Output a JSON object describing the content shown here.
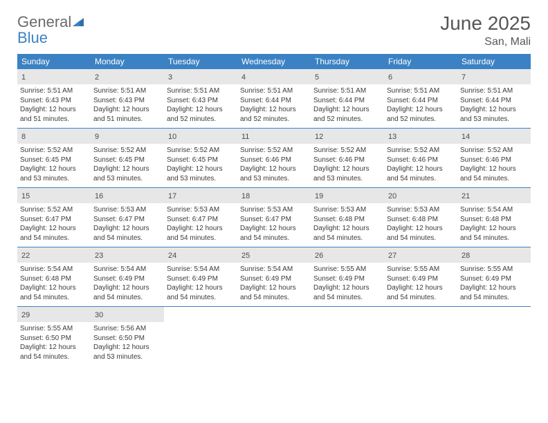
{
  "brand": {
    "part1": "General",
    "part2": "Blue"
  },
  "title": "June 2025",
  "location": "San, Mali",
  "colors": {
    "header_bg": "#3b82c4",
    "daynum_bg": "#e7e7e7",
    "text_dark": "#3a3a3a",
    "title_color": "#565656"
  },
  "daynames": [
    "Sunday",
    "Monday",
    "Tuesday",
    "Wednesday",
    "Thursday",
    "Friday",
    "Saturday"
  ],
  "weeks": [
    [
      {
        "n": "1",
        "sr": "5:51 AM",
        "ss": "6:43 PM",
        "dl": "12 hours and 51 minutes."
      },
      {
        "n": "2",
        "sr": "5:51 AM",
        "ss": "6:43 PM",
        "dl": "12 hours and 51 minutes."
      },
      {
        "n": "3",
        "sr": "5:51 AM",
        "ss": "6:43 PM",
        "dl": "12 hours and 52 minutes."
      },
      {
        "n": "4",
        "sr": "5:51 AM",
        "ss": "6:44 PM",
        "dl": "12 hours and 52 minutes."
      },
      {
        "n": "5",
        "sr": "5:51 AM",
        "ss": "6:44 PM",
        "dl": "12 hours and 52 minutes."
      },
      {
        "n": "6",
        "sr": "5:51 AM",
        "ss": "6:44 PM",
        "dl": "12 hours and 52 minutes."
      },
      {
        "n": "7",
        "sr": "5:51 AM",
        "ss": "6:44 PM",
        "dl": "12 hours and 53 minutes."
      }
    ],
    [
      {
        "n": "8",
        "sr": "5:52 AM",
        "ss": "6:45 PM",
        "dl": "12 hours and 53 minutes."
      },
      {
        "n": "9",
        "sr": "5:52 AM",
        "ss": "6:45 PM",
        "dl": "12 hours and 53 minutes."
      },
      {
        "n": "10",
        "sr": "5:52 AM",
        "ss": "6:45 PM",
        "dl": "12 hours and 53 minutes."
      },
      {
        "n": "11",
        "sr": "5:52 AM",
        "ss": "6:46 PM",
        "dl": "12 hours and 53 minutes."
      },
      {
        "n": "12",
        "sr": "5:52 AM",
        "ss": "6:46 PM",
        "dl": "12 hours and 53 minutes."
      },
      {
        "n": "13",
        "sr": "5:52 AM",
        "ss": "6:46 PM",
        "dl": "12 hours and 54 minutes."
      },
      {
        "n": "14",
        "sr": "5:52 AM",
        "ss": "6:46 PM",
        "dl": "12 hours and 54 minutes."
      }
    ],
    [
      {
        "n": "15",
        "sr": "5:52 AM",
        "ss": "6:47 PM",
        "dl": "12 hours and 54 minutes."
      },
      {
        "n": "16",
        "sr": "5:53 AM",
        "ss": "6:47 PM",
        "dl": "12 hours and 54 minutes."
      },
      {
        "n": "17",
        "sr": "5:53 AM",
        "ss": "6:47 PM",
        "dl": "12 hours and 54 minutes."
      },
      {
        "n": "18",
        "sr": "5:53 AM",
        "ss": "6:47 PM",
        "dl": "12 hours and 54 minutes."
      },
      {
        "n": "19",
        "sr": "5:53 AM",
        "ss": "6:48 PM",
        "dl": "12 hours and 54 minutes."
      },
      {
        "n": "20",
        "sr": "5:53 AM",
        "ss": "6:48 PM",
        "dl": "12 hours and 54 minutes."
      },
      {
        "n": "21",
        "sr": "5:54 AM",
        "ss": "6:48 PM",
        "dl": "12 hours and 54 minutes."
      }
    ],
    [
      {
        "n": "22",
        "sr": "5:54 AM",
        "ss": "6:48 PM",
        "dl": "12 hours and 54 minutes."
      },
      {
        "n": "23",
        "sr": "5:54 AM",
        "ss": "6:49 PM",
        "dl": "12 hours and 54 minutes."
      },
      {
        "n": "24",
        "sr": "5:54 AM",
        "ss": "6:49 PM",
        "dl": "12 hours and 54 minutes."
      },
      {
        "n": "25",
        "sr": "5:54 AM",
        "ss": "6:49 PM",
        "dl": "12 hours and 54 minutes."
      },
      {
        "n": "26",
        "sr": "5:55 AM",
        "ss": "6:49 PM",
        "dl": "12 hours and 54 minutes."
      },
      {
        "n": "27",
        "sr": "5:55 AM",
        "ss": "6:49 PM",
        "dl": "12 hours and 54 minutes."
      },
      {
        "n": "28",
        "sr": "5:55 AM",
        "ss": "6:49 PM",
        "dl": "12 hours and 54 minutes."
      }
    ],
    [
      {
        "n": "29",
        "sr": "5:55 AM",
        "ss": "6:50 PM",
        "dl": "12 hours and 54 minutes."
      },
      {
        "n": "30",
        "sr": "5:56 AM",
        "ss": "6:50 PM",
        "dl": "12 hours and 53 minutes."
      },
      null,
      null,
      null,
      null,
      null
    ]
  ],
  "labels": {
    "sunrise": "Sunrise:",
    "sunset": "Sunset:",
    "daylight": "Daylight:"
  }
}
